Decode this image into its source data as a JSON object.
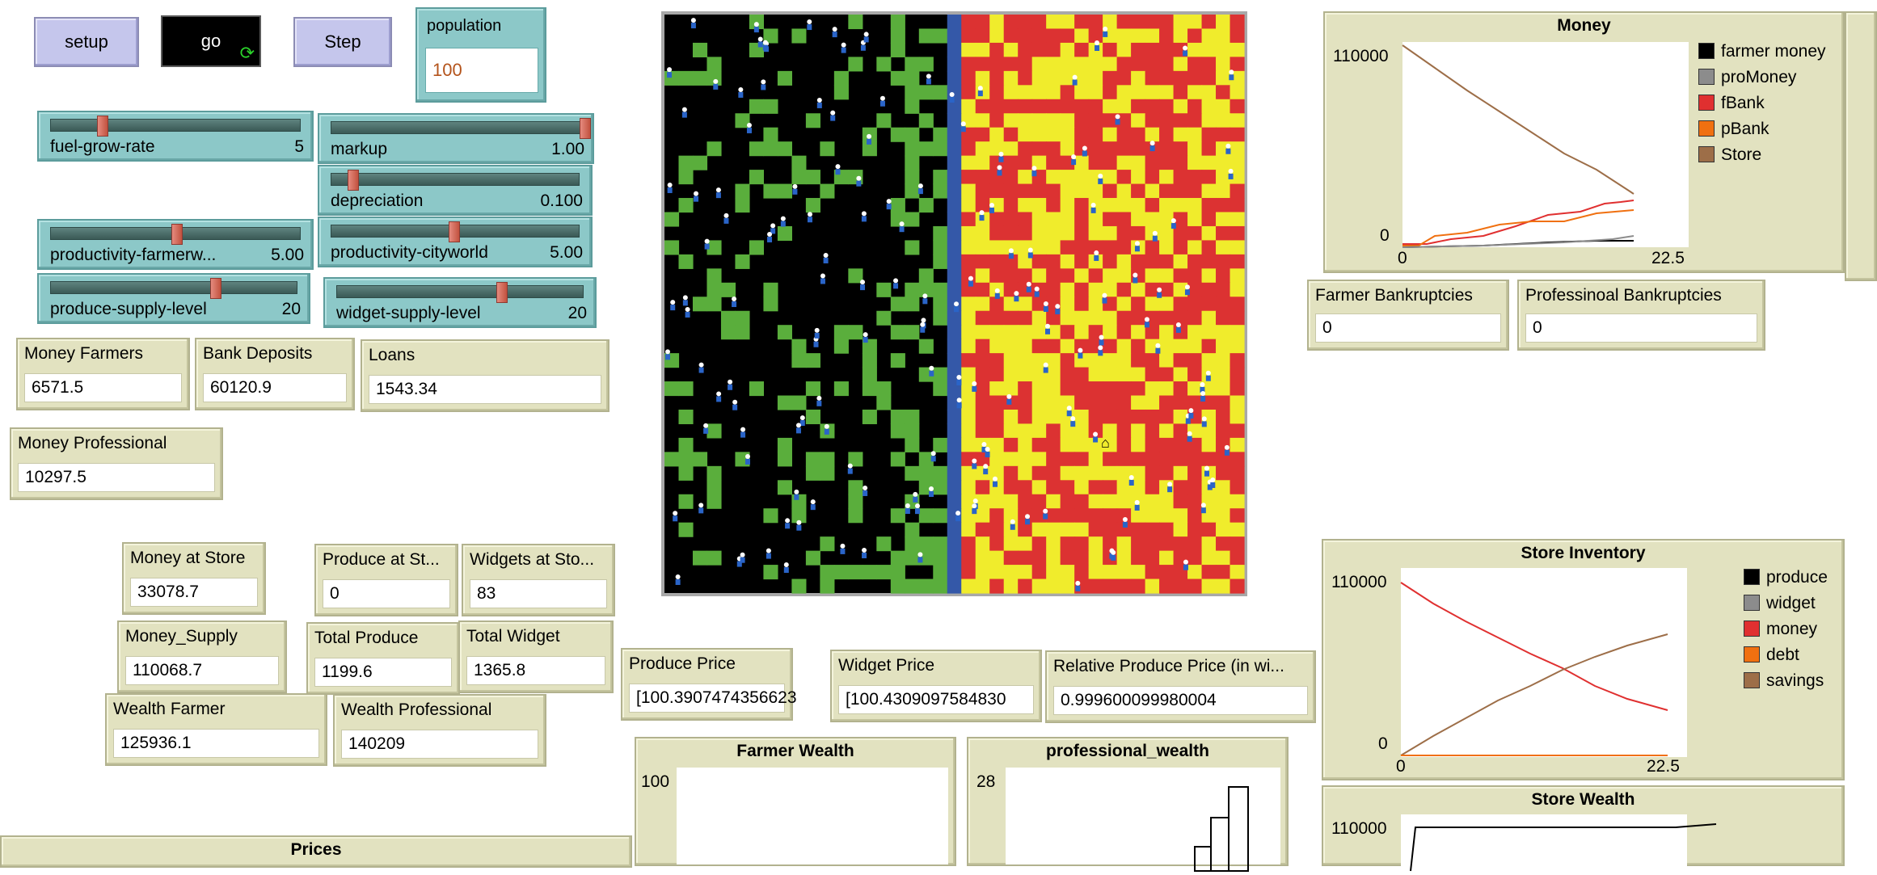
{
  "buttons": {
    "setup": "setup",
    "go": "go",
    "step": "Step"
  },
  "population": {
    "label": "population",
    "value": "100"
  },
  "sliders": [
    {
      "id": "fuel-grow-rate",
      "label": "fuel-grow-rate",
      "value": "5"
    },
    {
      "id": "markup",
      "label": "markup",
      "value": "1.00"
    },
    {
      "id": "depreciation",
      "label": "depreciation",
      "value": "0.100"
    },
    {
      "id": "productivity-farmerworld",
      "label": "productivity-farmerw...",
      "value": "5.00"
    },
    {
      "id": "productivity-cityworld",
      "label": "productivity-cityworld",
      "value": "5.00"
    },
    {
      "id": "produce-supply-level",
      "label": "produce-supply-level",
      "value": "20"
    },
    {
      "id": "widget-supply-level",
      "label": "widget-supply-level",
      "value": "20"
    }
  ],
  "monitors": {
    "money_farmers": {
      "label": "Money Farmers",
      "value": "6571.5"
    },
    "bank_deposits": {
      "label": "Bank Deposits",
      "value": "60120.9"
    },
    "loans": {
      "label": "Loans",
      "value": "1543.34"
    },
    "money_professional": {
      "label": "Money Professional",
      "value": "10297.5"
    },
    "money_at_store": {
      "label": "Money at Store",
      "value": "33078.7"
    },
    "produce_at_store": {
      "label": "Produce at St...",
      "value": "0"
    },
    "widgets_at_store": {
      "label": "Widgets at Sto...",
      "value": "83"
    },
    "money_supply": {
      "label": "Money_Supply",
      "value": "110068.7"
    },
    "total_produce": {
      "label": "Total Produce",
      "value": "1199.6"
    },
    "total_widget": {
      "label": "Total Widget",
      "value": "1365.8"
    },
    "wealth_farmer": {
      "label": "Wealth Farmer",
      "value": "125936.1"
    },
    "wealth_professional": {
      "label": "Wealth Professional",
      "value": "140209"
    },
    "produce_price": {
      "label": "Produce Price",
      "value": "[100.3907474356623"
    },
    "widget_price": {
      "label": "Widget Price",
      "value": "[100.4309097584830"
    },
    "relative_produce_price": {
      "label": "Relative Produce Price (in wi...",
      "value": "0.999600099980004"
    },
    "farmer_bankruptcies": {
      "label": "Farmer Bankruptcies",
      "value": "0"
    },
    "professional_bankruptcies": {
      "label": "Professinoal Bankruptcies",
      "value": "0"
    }
  },
  "plots": {
    "money": {
      "title": "Money",
      "ymax": "110000",
      "ymin": "0",
      "xmin": "0",
      "xmax": "22.5",
      "legend": [
        {
          "name": "farmer money",
          "color": "#000000"
        },
        {
          "name": "proMoney",
          "color": "#8c8c8c"
        },
        {
          "name": "fBank",
          "color": "#e03030"
        },
        {
          "name": "pBank",
          "color": "#f07010"
        },
        {
          "name": "Store",
          "color": "#9d6e48"
        }
      ]
    },
    "store_inventory": {
      "title": "Store Inventory",
      "ymax": "110000",
      "ymin": "0",
      "xmin": "0",
      "xmax": "22.5",
      "legend": [
        {
          "name": "produce",
          "color": "#000000"
        },
        {
          "name": "widget",
          "color": "#8c8c8c"
        },
        {
          "name": "money",
          "color": "#e03030"
        },
        {
          "name": "debt",
          "color": "#f07010"
        },
        {
          "name": "savings",
          "color": "#9d6e48"
        }
      ]
    },
    "store_wealth": {
      "title": "Store Wealth",
      "ymax": "110000"
    },
    "farmer_wealth": {
      "title": "Farmer Wealth",
      "ymax": "100"
    },
    "professional_wealth": {
      "title": "professional_wealth",
      "ymax": "28"
    },
    "prices": {
      "title": "Prices"
    }
  },
  "colors": {
    "world_green": "#5aae3c",
    "world_red": "#dc3232",
    "world_yellow": "#f0ec2c",
    "world_river": "#3458a8"
  }
}
